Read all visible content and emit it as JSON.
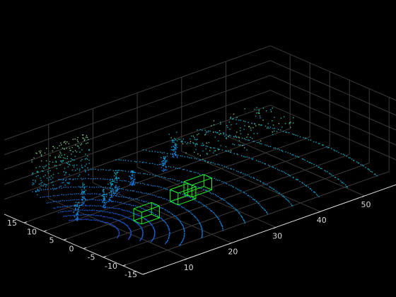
{
  "figure": {
    "background": "#000000",
    "axis_color": "#d9d9d9",
    "grid_color": "#3a3a3a",
    "colormap": "parula",
    "box_color": "#22ee22"
  },
  "chart_data": {
    "type": "scatter",
    "kind": "3d-lidar-point-cloud",
    "title": "",
    "xlabel": "",
    "ylabel": "",
    "xlim": [
      0,
      60
    ],
    "ylim": [
      -15,
      20
    ],
    "zlim": [
      -2,
      8
    ],
    "grid": true,
    "xticks": [
      "10",
      "20",
      "30",
      "40",
      "50"
    ],
    "yticks": [
      "-15",
      "-10",
      "-5",
      "0",
      "5",
      "10",
      "15"
    ],
    "ring_radii": [
      6,
      8,
      10,
      12,
      14.5,
      17,
      20,
      23.5,
      27.5,
      32,
      37,
      42.5,
      48.5,
      55
    ],
    "vertical_structures": [
      {
        "x": 3,
        "y": 5,
        "z_top": 2.5
      },
      {
        "x": 8,
        "y": 9,
        "z_top": 3
      },
      {
        "x": 10,
        "y": 6,
        "z_top": 2.5
      },
      {
        "x": 12.5,
        "y": 7,
        "z_top": 3
      },
      {
        "x": 15,
        "y": 8.5,
        "z_top": 3.5
      },
      {
        "x": 20,
        "y": 10,
        "z_top": 2
      },
      {
        "x": 28,
        "y": 11,
        "z_top": 2
      },
      {
        "x": 33,
        "y": 14,
        "z_top": 2.5
      }
    ],
    "wall": {
      "x_from": 4,
      "x_to": 17,
      "y": 17.5,
      "z_from": 0,
      "z_to": 6
    },
    "detected_boxes": [
      {
        "x": 10,
        "y": -3.5,
        "z": 0,
        "length": 4,
        "width": 2,
        "height": 1.6
      },
      {
        "x": 20,
        "y": -1.5,
        "z": 0,
        "length": 4,
        "width": 2,
        "height": 1.6
      },
      {
        "x": 24,
        "y": -0.5,
        "z": 0,
        "length": 4.5,
        "width": 2,
        "height": 1.6
      }
    ]
  }
}
